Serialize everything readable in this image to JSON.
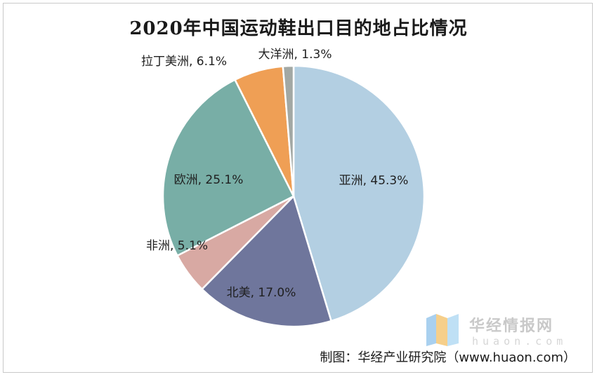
{
  "chart_data": {
    "type": "pie",
    "title": "2020年中国运动鞋出口目的地占比情况",
    "slices": [
      {
        "label": "亚洲",
        "value": 45.3,
        "display": "亚洲, 45.3%",
        "color": "#b3cfe2"
      },
      {
        "label": "北美",
        "value": 17.0,
        "display": "北美, 17.0%",
        "color": "#6f769c"
      },
      {
        "label": "非洲",
        "value": 5.1,
        "display": "非洲, 5.1%",
        "color": "#d8a9a3"
      },
      {
        "label": "欧洲",
        "value": 25.1,
        "display": "欧洲, 25.1%",
        "color": "#78aea6"
      },
      {
        "label": "拉丁美洲",
        "value": 6.1,
        "display": "拉丁美洲, 6.1%",
        "color": "#ef9f55"
      },
      {
        "label": "大洋洲",
        "value": 1.3,
        "display": "大洋洲, 1.3%",
        "color": "#a2a8a4"
      }
    ],
    "start_angle": "12 o'clock",
    "direction": "clockwise"
  },
  "watermark": {
    "name": "华经情报网",
    "domain": "huaon.com"
  },
  "source": "制图：华经产业研究院（www.huaon.com）"
}
